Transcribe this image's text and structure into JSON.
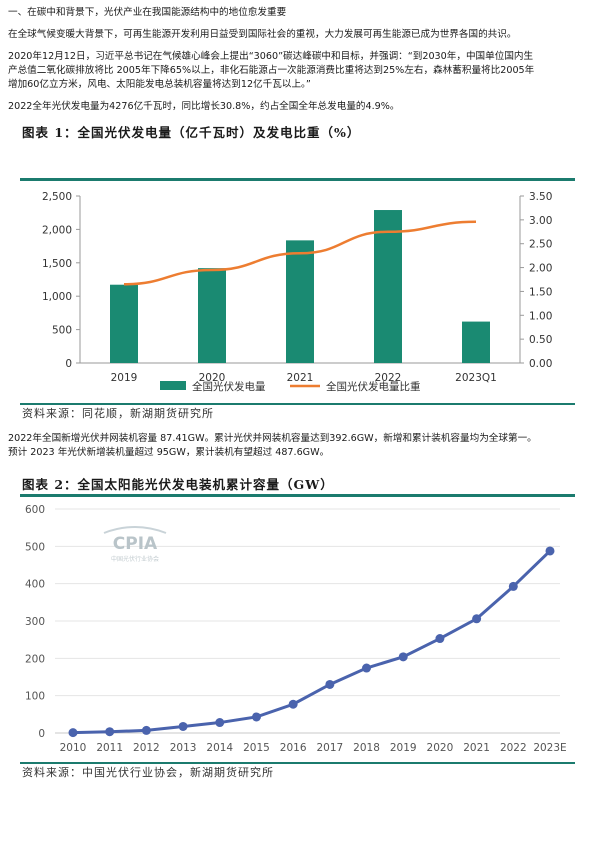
{
  "section": {
    "heading": "一、在碳中和背景下，光伏产业在我国能源结构中的地位愈发重要",
    "para1": "在全球气候变暖大背景下，可再生能源开发利用日益受到国际社会的重视，大力发展可再生能源已成为世界各国的共识。",
    "para2_line1": "2020年12月12日，习近平总书记在气候雄心峰会上提出“3060”碳达峰碳中和目标，并强调：“到2030年，中国单位国内生",
    "para2_line2": "产总值二氧化碳排放将比 2005年下降65%以上，非化石能源占一次能源消费比重将达到25%左右，森林蓄积量将比2005年",
    "para2_line3": "增加60亿立方米，风电、太阳能发电总装机容量将达到12亿千瓦以上。”",
    "para3": "2022全年光伏发电量为4276亿千瓦时，同比增长30.8%，约占全国全年总发电量的4.9%。",
    "para4_line1": "2022年全国新增光伏并网装机容量 87.41GW。累计光伏并网装机容量达到392.6GW，新增和累计装机容量均为全球第一。",
    "para4_line2": "预计 2023 年光伏新增装机量超过 95GW，累计装机有望超过 487.6GW。"
  },
  "figure1": {
    "title": "图表 1：全国光伏发电量（亿千瓦时）及发电比重（%）",
    "source": "资料来源：同花顺，新湖期货研究所"
  },
  "figure2": {
    "title": "图表 2：全国太阳能光伏发电装机累计容量（GW）",
    "source": "资料来源：中国光伏行业协会，新湖期货研究所",
    "watermark": "CPIA",
    "watermark_sub": "中国光伏行业协会"
  },
  "colors": {
    "teal": "#1a8a72",
    "orange": "#ed7d31",
    "blue": "#4a63ad",
    "rule": "#1b7b6e"
  },
  "chart_data": [
    {
      "type": "bar",
      "categories": [
        "2019",
        "2020",
        "2021",
        "2022",
        "2023Q1"
      ],
      "category_labels": [
        "2019",
        "2020",
        "2021",
        "2022",
        "2023Q1"
      ],
      "series": [
        {
          "name": "全国光伏发电量",
          "type": "bar",
          "axis": "left",
          "values": [
            1172,
            1420,
            1836,
            2290,
            620
          ]
        },
        {
          "name": "全国光伏发电量比重",
          "type": "line",
          "axis": "right",
          "values": [
            1.65,
            1.95,
            2.3,
            2.75,
            2.96
          ]
        }
      ],
      "ylim": [
        0,
        2500
      ],
      "y_ticks": [
        "0",
        "500",
        "1,000",
        "1,500",
        "2,000",
        "2,500"
      ],
      "y2lim": [
        0,
        3.5
      ],
      "y2_ticks": [
        "0.00",
        "0.50",
        "1.00",
        "1.50",
        "2.00",
        "2.50",
        "3.00",
        "3.50"
      ],
      "legend": "bottom",
      "grid": false
    },
    {
      "type": "line",
      "x": [
        "2010",
        "2011",
        "2012",
        "2013",
        "2014",
        "2015",
        "2016",
        "2017",
        "2018",
        "2019",
        "2020",
        "2021",
        "2022",
        "2023E"
      ],
      "x_labels": [
        "2010",
        "2011",
        "2012",
        "2013",
        "2014",
        "2015",
        "2016",
        "2017",
        "2018",
        "2019",
        "2020",
        "2021",
        "2022",
        "2023E"
      ],
      "series": [
        {
          "values": [
            1,
            3.5,
            7,
            17.5,
            28,
            43,
            77,
            130,
            174,
            204,
            253,
            306,
            392.6,
            487.6
          ]
        }
      ],
      "ylim": [
        0,
        600
      ],
      "y_ticks": [
        "0",
        "100",
        "200",
        "300",
        "400",
        "500",
        "600"
      ],
      "grid": true
    }
  ]
}
